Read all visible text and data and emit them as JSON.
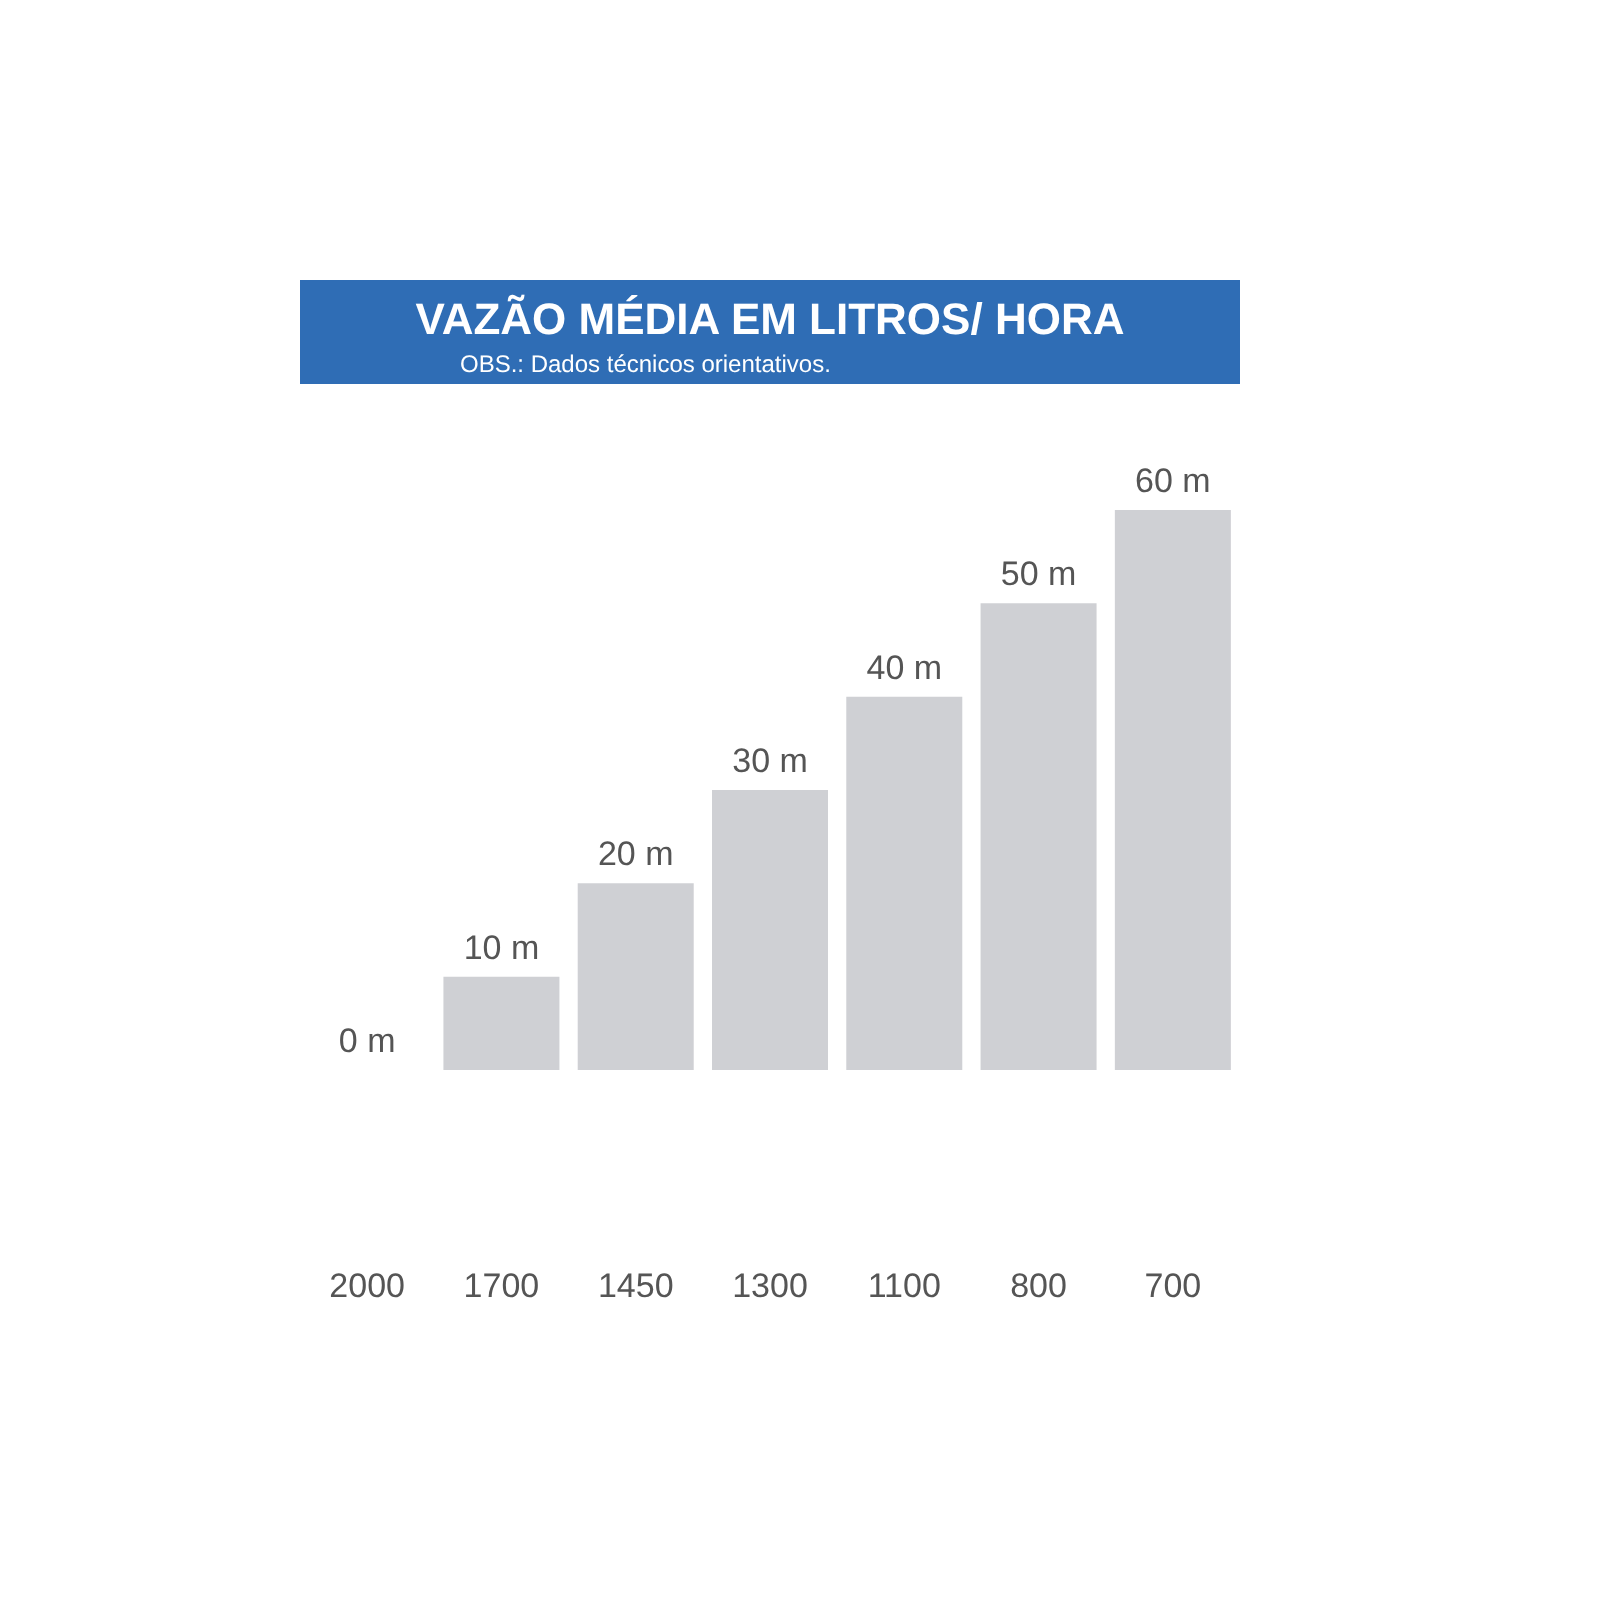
{
  "chart_data": {
    "type": "bar",
    "title": "VAZÃO MÉDIA EM LITROS/ HORA",
    "subtitle": "OBS.: Dados técnicos orientativos.",
    "categories": [
      "2000",
      "1700",
      "1450",
      "1300",
      "1100",
      "800",
      "700"
    ],
    "grid": false,
    "series": [
      {
        "color": "#cfd0d4",
        "values": [
          0,
          10,
          20,
          30,
          40,
          50,
          60
        ],
        "value_labels": [
          "0 m",
          "10 m",
          "20 m",
          "30 m",
          "40 m",
          "50 m",
          "60 m"
        ]
      }
    ]
  }
}
